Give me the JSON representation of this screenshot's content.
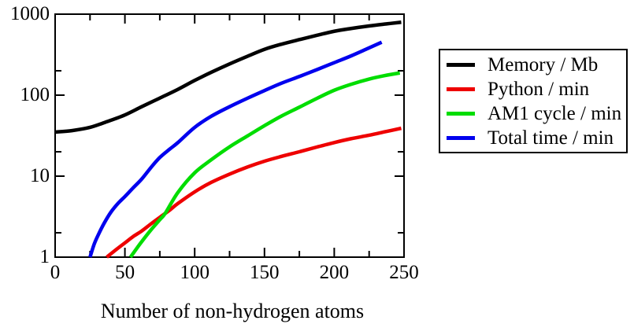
{
  "figure": {
    "background": "#ffffff"
  },
  "chart_data": {
    "type": "line",
    "title": "",
    "x_axis": {
      "label": "Number of non-hydrogen atoms",
      "min": 0,
      "max": 250,
      "scale": "linear",
      "major_ticks": [
        0,
        50,
        100,
        150,
        200,
        250
      ],
      "minor_ticks": [
        25,
        75,
        125,
        175,
        225
      ],
      "tick_labels": [
        "0",
        "50",
        "100",
        "150",
        "200",
        "250"
      ]
    },
    "y_axis": {
      "label": "",
      "min": 1,
      "max": 1000,
      "scale": "log",
      "major_ticks": [
        1,
        10,
        100,
        1000
      ],
      "minor_ticks": [
        2,
        20,
        200
      ],
      "tick_labels": [
        "1",
        "10",
        "100",
        "1000"
      ]
    },
    "grid": "off",
    "legend": {
      "position": "outside-right",
      "border_color": "#000000",
      "background": "#ffffff"
    },
    "frame_color": "#000000",
    "series": [
      {
        "name": "Memory / Mb",
        "color": "#000000",
        "points": [
          [
            0,
            35
          ],
          [
            12,
            36.5
          ],
          [
            25,
            40
          ],
          [
            37,
            47
          ],
          [
            50,
            57
          ],
          [
            62,
            72
          ],
          [
            75,
            92
          ],
          [
            88,
            118
          ],
          [
            100,
            152
          ],
          [
            112,
            192
          ],
          [
            125,
            243
          ],
          [
            138,
            303
          ],
          [
            150,
            368
          ],
          [
            162,
            425
          ],
          [
            175,
            485
          ],
          [
            188,
            550
          ],
          [
            200,
            615
          ],
          [
            212,
            665
          ],
          [
            225,
            715
          ],
          [
            238,
            760
          ],
          [
            248,
            795
          ]
        ]
      },
      {
        "name": "Python / min",
        "color": "#ee0000",
        "points": [
          [
            37,
            1
          ],
          [
            44,
            1.25
          ],
          [
            50,
            1.5
          ],
          [
            56,
            1.8
          ],
          [
            62,
            2.1
          ],
          [
            69,
            2.6
          ],
          [
            75,
            3.1
          ],
          [
            82,
            3.8
          ],
          [
            88,
            4.6
          ],
          [
            100,
            6.4
          ],
          [
            112,
            8.4
          ],
          [
            125,
            10.6
          ],
          [
            138,
            13
          ],
          [
            150,
            15.3
          ],
          [
            162,
            17.5
          ],
          [
            175,
            20
          ],
          [
            188,
            23
          ],
          [
            200,
            26
          ],
          [
            212,
            29
          ],
          [
            225,
            32
          ],
          [
            237,
            35.5
          ],
          [
            248,
            39
          ]
        ]
      },
      {
        "name": "AM1 cycle / min",
        "color": "#00dd00",
        "points": [
          [
            54,
            1
          ],
          [
            58,
            1.25
          ],
          [
            62,
            1.55
          ],
          [
            68,
            2.1
          ],
          [
            75,
            2.9
          ],
          [
            79,
            3.5
          ],
          [
            88,
            6.3
          ],
          [
            100,
            11
          ],
          [
            112,
            16
          ],
          [
            125,
            23
          ],
          [
            138,
            31.5
          ],
          [
            150,
            42
          ],
          [
            162,
            55
          ],
          [
            175,
            71
          ],
          [
            188,
            92
          ],
          [
            200,
            115
          ],
          [
            212,
            136
          ],
          [
            225,
            158
          ],
          [
            236,
            174
          ],
          [
            247,
            188
          ]
        ]
      },
      {
        "name": "Total time / min",
        "color": "#0000ee",
        "points": [
          [
            25,
            1
          ],
          [
            28,
            1.45
          ],
          [
            31,
            1.9
          ],
          [
            35,
            2.6
          ],
          [
            40,
            3.6
          ],
          [
            45,
            4.6
          ],
          [
            50,
            5.6
          ],
          [
            56,
            7.2
          ],
          [
            62,
            9.2
          ],
          [
            69,
            13
          ],
          [
            75,
            17
          ],
          [
            82,
            21.5
          ],
          [
            88,
            26
          ],
          [
            100,
            40
          ],
          [
            112,
            55
          ],
          [
            125,
            72
          ],
          [
            138,
            92
          ],
          [
            150,
            114
          ],
          [
            162,
            140
          ],
          [
            175,
            170
          ],
          [
            188,
            208
          ],
          [
            200,
            252
          ],
          [
            212,
            305
          ],
          [
            223,
            370
          ],
          [
            234,
            450
          ]
        ]
      }
    ]
  }
}
